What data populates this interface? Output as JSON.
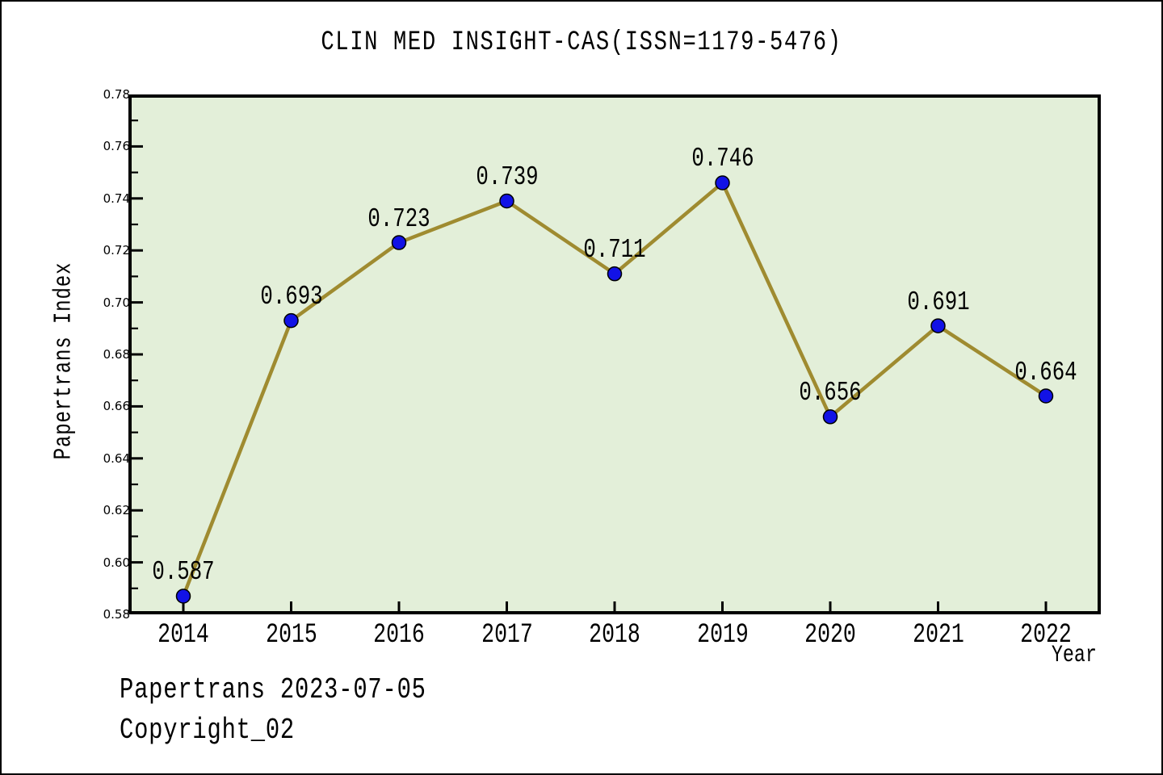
{
  "window": {
    "background": "#ffffff",
    "border_color": "#000000"
  },
  "chart_data": {
    "type": "line",
    "title": "CLIN MED INSIGHT-CAS(ISSN=1179-5476)",
    "xlabel": "Year",
    "ylabel": "Papertrans Index",
    "x": [
      "2014",
      "2015",
      "2016",
      "2017",
      "2018",
      "2019",
      "2020",
      "2021",
      "2022"
    ],
    "series": [
      {
        "name": "Papertrans Index",
        "values": [
          0.587,
          0.693,
          0.723,
          0.739,
          0.711,
          0.746,
          0.656,
          0.691,
          0.664
        ],
        "point_labels": [
          "0.587",
          "0.693",
          "0.723",
          "0.739",
          "0.711",
          "0.746",
          "0.656",
          "0.691",
          "0.664"
        ]
      }
    ],
    "ylim": [
      0.58,
      0.78
    ],
    "yticks": [
      "0.58",
      "0.60",
      "0.62",
      "0.64",
      "0.66",
      "0.68",
      "0.70",
      "0.72",
      "0.74",
      "0.76",
      "0.78"
    ],
    "minor_ytick_step": 0.01,
    "grid": false,
    "legend_position": "none",
    "style": {
      "plot_bg": "#e3efd9",
      "line_color": "#9f8b30",
      "marker_color": "#1212e6",
      "marker_edge": "#000000",
      "axis_color": "#000000",
      "text_color": "#000000",
      "line_width": 4.5,
      "marker_radius": 8.5
    }
  },
  "footer": {
    "line1": "Papertrans 2023-07-05",
    "line2": "Copyright_02"
  }
}
